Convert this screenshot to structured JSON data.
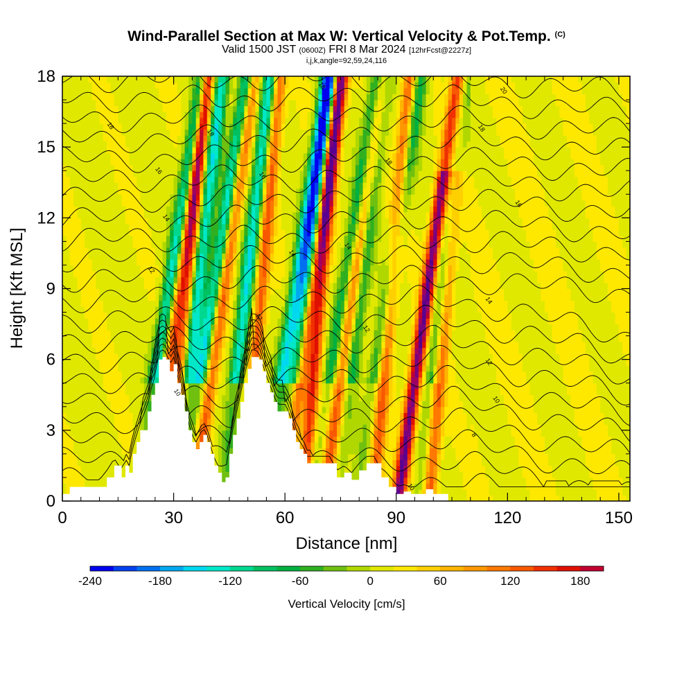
{
  "header": {
    "title": "Wind-Parallel Section at Max W: Vertical Velocity & Pot.Temp.",
    "title_mark": "(C)",
    "valid_prefix": "Valid 1500 JST",
    "valid_utc": "(0600Z)",
    "valid_date": "FRI 8 Mar 2024",
    "forecast_tag": "[12hrFcst@2227z]",
    "params": "i,j,k,angle=92,59,24,116"
  },
  "chart_data": {
    "type": "heatmap",
    "xlabel": "Distance [nm]",
    "ylabel": "Height [Kft MSL]",
    "xlim": [
      0,
      153
    ],
    "ylim": [
      0,
      18
    ],
    "x_ticks": [
      "0",
      "30",
      "60",
      "90",
      "120",
      "150"
    ],
    "y_ticks": [
      "0",
      "3",
      "6",
      "9",
      "12",
      "15",
      "18"
    ],
    "colorbar": {
      "label": "Vertical Velocity [cm/s]",
      "ticks": [
        "-240",
        "-180",
        "-120",
        "-60",
        "0",
        "60",
        "120",
        "180"
      ],
      "min": -240,
      "max": 200,
      "step": 20,
      "colors": [
        "#0000f0",
        "#0040f0",
        "#0070f0",
        "#00a8f0",
        "#00d8f0",
        "#00e8c8",
        "#00d890",
        "#00c060",
        "#00b040",
        "#30b020",
        "#70c010",
        "#b0d800",
        "#e0e800",
        "#ffe800",
        "#ffd000",
        "#ffb400",
        "#ff9800",
        "#ff7800",
        "#f85800",
        "#f03000",
        "#e01000",
        "#c00030",
        "#a00060",
        "#7a0080",
        "#5a0090"
      ]
    },
    "terrain": {
      "x": [
        0,
        2,
        10,
        12,
        14,
        16,
        17,
        18,
        19,
        20,
        21,
        23,
        24,
        25,
        26,
        27,
        28,
        29,
        30,
        31,
        32,
        33,
        34,
        35,
        36,
        37,
        38,
        39,
        40,
        41,
        42,
        43,
        44,
        45,
        46,
        47,
        48,
        49,
        50,
        51,
        52,
        53,
        54,
        55,
        56,
        57,
        58,
        59,
        60,
        61,
        62,
        63,
        64,
        65,
        66,
        68,
        72,
        74,
        76,
        78,
        80,
        82,
        84,
        86,
        88,
        90,
        92,
        94,
        96,
        98,
        100,
        104
      ],
      "heights": [
        0.3,
        0.6,
        0.6,
        1.0,
        1.5,
        1.0,
        1.5,
        1.2,
        2.0,
        2.5,
        3.0,
        3.8,
        4.5,
        5.0,
        6.0,
        6.1,
        6.0,
        5.5,
        5.8,
        5.0,
        4.5,
        3.8,
        3.0,
        2.5,
        2.2,
        2.5,
        2.8,
        2.5,
        2.0,
        1.5,
        1.2,
        0.8,
        1.0,
        2.0,
        2.8,
        3.5,
        4.2,
        5.0,
        5.6,
        6.1,
        6.1,
        6.0,
        5.5,
        5.0,
        4.6,
        4.2,
        3.8,
        3.8,
        3.8,
        3.5,
        3.0,
        2.5,
        2.2,
        2.0,
        1.6,
        1.6,
        1.6,
        1.0,
        1.2,
        0.9,
        1.3,
        1.6,
        1.6,
        1.0,
        0.6,
        0.3,
        0.4,
        0.3,
        0.3,
        0.5,
        0.3,
        0.3
      ]
    },
    "updraft_cores_x": [
      27,
      31,
      39,
      51,
      63,
      67,
      74,
      86,
      94,
      101
    ],
    "downdraft_cores_x": [
      24,
      33,
      36,
      46,
      58,
      62,
      71,
      77,
      83,
      99
    ],
    "contour_labels": [
      {
        "text": "18",
        "x": 13,
        "y": 15.9
      },
      {
        "text": "18",
        "x": 40,
        "y": 15.6
      },
      {
        "text": "18",
        "x": 70,
        "y": 17.6
      },
      {
        "text": "20",
        "x": 119,
        "y": 17.4
      },
      {
        "text": "18",
        "x": 113,
        "y": 15.8
      },
      {
        "text": "18",
        "x": 88,
        "y": 14.4
      },
      {
        "text": "16",
        "x": 26,
        "y": 14.0
      },
      {
        "text": "16",
        "x": 54,
        "y": 13.8
      },
      {
        "text": "16",
        "x": 123,
        "y": 12.6
      },
      {
        "text": "14",
        "x": 28,
        "y": 12.0
      },
      {
        "text": "14",
        "x": 62,
        "y": 10.5
      },
      {
        "text": "14",
        "x": 77,
        "y": 10.8
      },
      {
        "text": "14",
        "x": 115,
        "y": 8.5
      },
      {
        "text": "12",
        "x": 24,
        "y": 9.8
      },
      {
        "text": "12",
        "x": 53,
        "y": 7.8
      },
      {
        "text": "12",
        "x": 82,
        "y": 7.3
      },
      {
        "text": "12",
        "x": 115,
        "y": 5.9
      },
      {
        "text": "10",
        "x": 31,
        "y": 4.6
      },
      {
        "text": "10",
        "x": 117,
        "y": 4.3
      },
      {
        "text": "8",
        "x": 111,
        "y": 2.8
      },
      {
        "text": "10",
        "x": 94,
        "y": 0.6
      }
    ]
  }
}
